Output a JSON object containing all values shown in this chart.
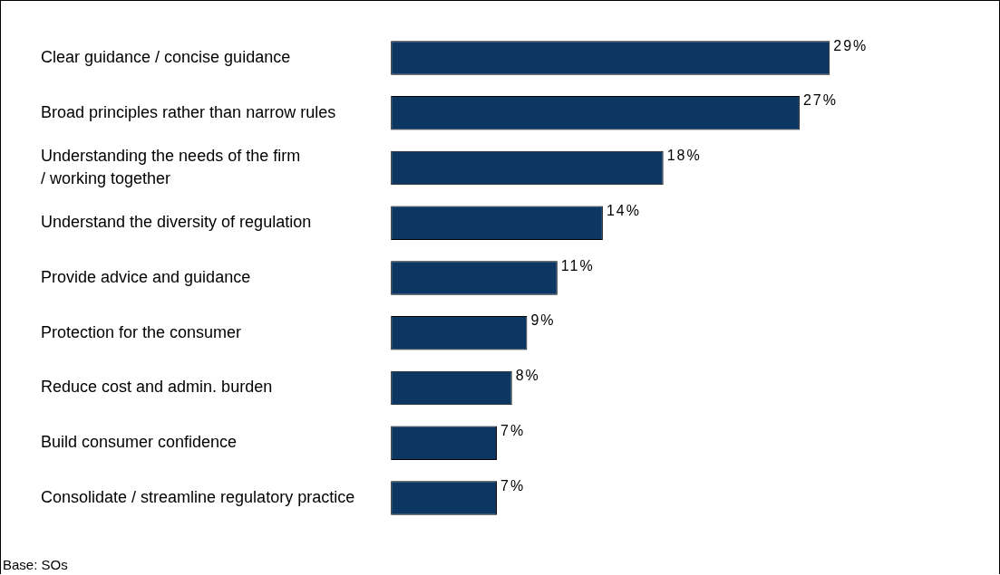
{
  "chart_data": {
    "type": "bar",
    "orientation": "horizontal",
    "categories": [
      "Clear guidance / concise guidance",
      "Broad principles rather than narrow rules",
      "Understanding the needs of the firm / working together",
      "Understand the diversity of regulation",
      "Provide advice and guidance",
      "Protection for the consumer",
      "Reduce cost and admin. burden",
      "Build consumer confidence",
      "Consolidate / streamline regulatory practice"
    ],
    "values": [
      29,
      27,
      18,
      14,
      11,
      9,
      8,
      7,
      7
    ],
    "value_labels": [
      "29%",
      "27%",
      "18%",
      "14%",
      "11%",
      "9%",
      "8%",
      "7%",
      "7%"
    ],
    "color": "#0b3762",
    "tick_labels": "y",
    "grid": false,
    "legend": false,
    "annotations": [
      "Base: SOs"
    ]
  }
}
